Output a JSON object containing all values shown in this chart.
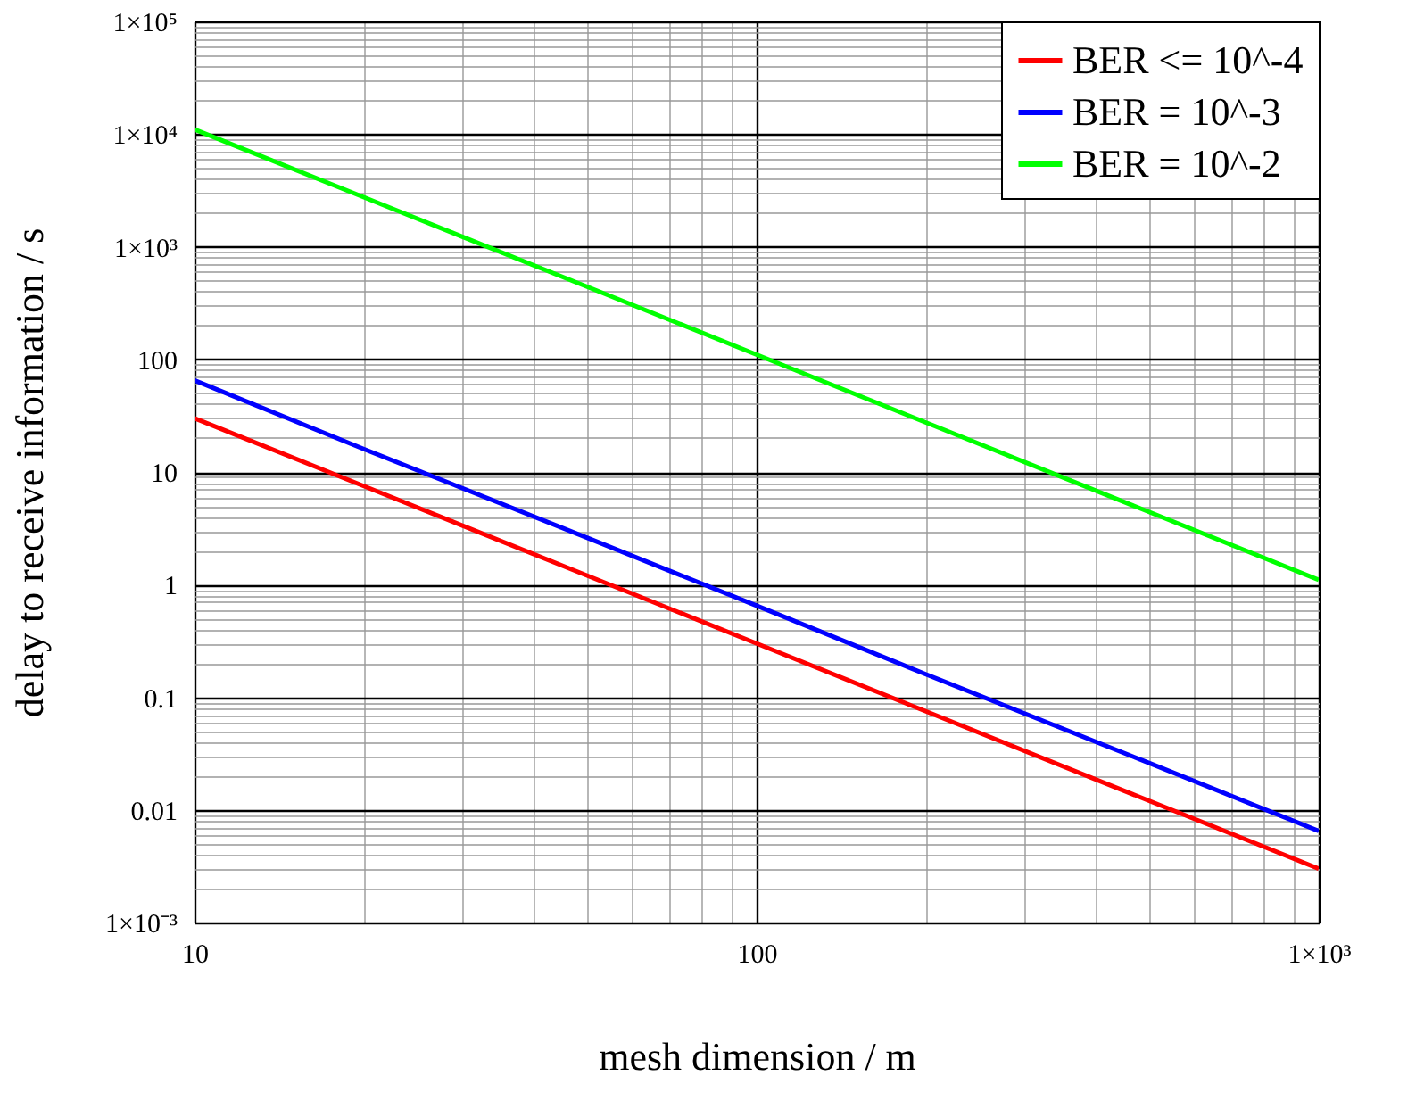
{
  "chart_data": {
    "type": "line",
    "xlabel": "mesh dimension / m",
    "ylabel": "delay to receive information / s",
    "log": "xy",
    "grid": true,
    "legend": "top right",
    "line_style": "solid",
    "marker": "none",
    "xlim": [
      10,
      1000
    ],
    "ylim": [
      0.001,
      100000
    ],
    "xticks": [
      10,
      {
        "value": 20,
        "label": null
      },
      {
        "value": 30,
        "label": null
      },
      {
        "value": 40,
        "label": null
      },
      {
        "value": 50,
        "label": null
      },
      {
        "value": 60,
        "label": null
      },
      {
        "value": 70,
        "label": null
      },
      {
        "value": 80,
        "label": null
      },
      {
        "value": 90,
        "label": null
      },
      100,
      {
        "value": 200,
        "label": null
      },
      {
        "value": 300,
        "label": null
      },
      {
        "value": 400,
        "label": null
      },
      {
        "value": 500,
        "label": null
      },
      {
        "value": 600,
        "label": null
      },
      {
        "value": 700,
        "label": null
      },
      {
        "value": 800,
        "label": null
      },
      {
        "value": 900,
        "label": null
      },
      {
        "value": 1000,
        "label": "1×10³"
      }
    ],
    "yticks": [
      {
        "value": 0.001,
        "label": "1×10⁻³"
      },
      {
        "value": 0.002,
        "label": null
      },
      {
        "value": 0.003,
        "label": null
      },
      {
        "value": 0.004,
        "label": null
      },
      {
        "value": 0.005,
        "label": null
      },
      {
        "value": 0.006,
        "label": null
      },
      {
        "value": 0.007,
        "label": null
      },
      {
        "value": 0.008,
        "label": null
      },
      {
        "value": 0.009,
        "label": null
      },
      0.01,
      {
        "value": 0.02,
        "label": null
      },
      {
        "value": 0.03,
        "label": null
      },
      {
        "value": 0.04,
        "label": null
      },
      {
        "value": 0.05,
        "label": null
      },
      {
        "value": 0.06,
        "label": null
      },
      {
        "value": 0.07,
        "label": null
      },
      {
        "value": 0.08,
        "label": null
      },
      {
        "value": 0.09,
        "label": null
      },
      0.1,
      {
        "value": 0.2,
        "label": null
      },
      {
        "value": 0.3,
        "label": null
      },
      {
        "value": 0.4,
        "label": null
      },
      {
        "value": 0.5,
        "label": null
      },
      {
        "value": 0.6,
        "label": null
      },
      {
        "value": 0.7,
        "label": null
      },
      {
        "value": 0.8,
        "label": null
      },
      {
        "value": 0.9,
        "label": null
      },
      1,
      {
        "value": 2,
        "label": null
      },
      {
        "value": 3,
        "label": null
      },
      {
        "value": 4,
        "label": null
      },
      {
        "value": 5,
        "label": null
      },
      {
        "value": 6,
        "label": null
      },
      {
        "value": 7,
        "label": null
      },
      {
        "value": 8,
        "label": null
      },
      {
        "value": 9,
        "label": null
      },
      10,
      {
        "value": 20,
        "label": null
      },
      {
        "value": 30,
        "label": null
      },
      {
        "value": 40,
        "label": null
      },
      {
        "value": 50,
        "label": null
      },
      {
        "value": 60,
        "label": null
      },
      {
        "value": 70,
        "label": null
      },
      {
        "value": 80,
        "label": null
      },
      {
        "value": 90,
        "label": null
      },
      100,
      {
        "value": 200,
        "label": null
      },
      {
        "value": 300,
        "label": null
      },
      {
        "value": 400,
        "label": null
      },
      {
        "value": 500,
        "label": null
      },
      {
        "value": 600,
        "label": null
      },
      {
        "value": 700,
        "label": null
      },
      {
        "value": 800,
        "label": null
      },
      {
        "value": 900,
        "label": null
      },
      {
        "value": 1000,
        "label": "1×10³"
      },
      {
        "value": 2000,
        "label": null
      },
      {
        "value": 3000,
        "label": null
      },
      {
        "value": 4000,
        "label": null
      },
      {
        "value": 5000,
        "label": null
      },
      {
        "value": 6000,
        "label": null
      },
      {
        "value": 7000,
        "label": null
      },
      {
        "value": 8000,
        "label": null
      },
      {
        "value": 9000,
        "label": null
      },
      {
        "value": 10000,
        "label": "1×10⁴"
      },
      {
        "value": 20000,
        "label": null
      },
      {
        "value": 30000,
        "label": null
      },
      {
        "value": 40000,
        "label": null
      },
      {
        "value": 50000,
        "label": null
      },
      {
        "value": 60000,
        "label": null
      },
      {
        "value": 70000,
        "label": null
      },
      {
        "value": 80000,
        "label": null
      },
      {
        "value": 90000,
        "label": null
      },
      {
        "value": 100000,
        "label": "1×10⁵"
      }
    ],
    "x": [
      10,
      20,
      50,
      100,
      200,
      500,
      1000
    ],
    "series": [
      {
        "name": "BER <= 10^-4",
        "color": "#ff0000",
        "values": [
          30,
          7.5,
          1.2,
          0.3,
          0.075,
          0.012,
          0.003
        ]
      },
      {
        "name": "BER = 10^-3",
        "color": "#0000ff",
        "values": [
          65,
          16,
          2.6,
          0.65,
          0.16,
          0.026,
          0.0065
        ]
      },
      {
        "name": "BER = 10^-2",
        "color": "#00ff00",
        "values": [
          11000,
          2750,
          440,
          110,
          27.5,
          4.4,
          1.1
        ]
      }
    ]
  }
}
